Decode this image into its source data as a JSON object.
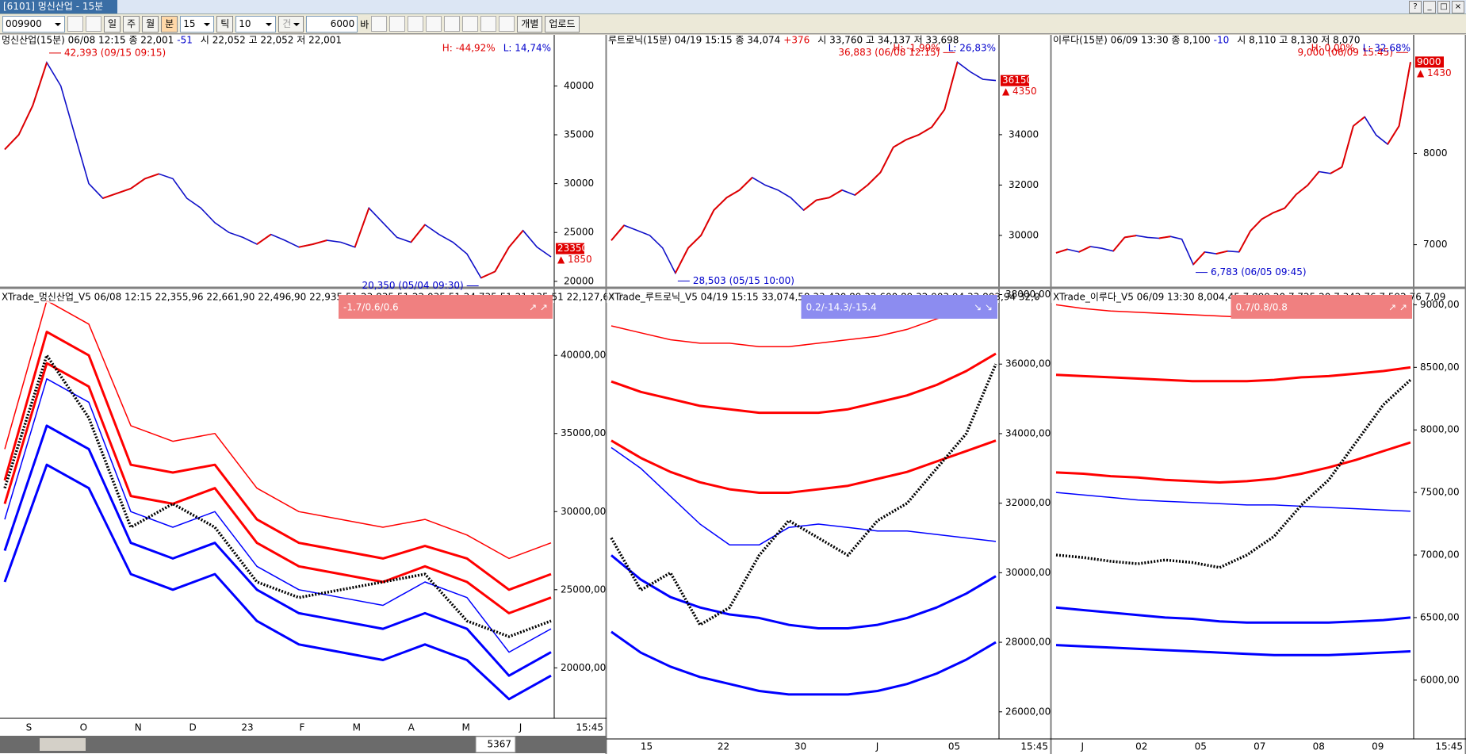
{
  "window": {
    "title": "[6101] 멍신산업 - 15분",
    "buttons": [
      "?",
      "_",
      "□",
      "×"
    ]
  },
  "toolbar": {
    "code": "009900",
    "periods": [
      "일",
      "주",
      "월",
      "분"
    ],
    "interval": "15",
    "tick_label": "틱",
    "tick": "10",
    "count_label": "건수",
    "count": "6000",
    "unit": "바",
    "actions": [
      "개별",
      "업로드"
    ]
  },
  "scroll_position": "5367",
  "panels": [
    {
      "header": "멍신산업(15분) 06/08 12:15  종 22,001",
      "change": "-51",
      "ohlc": "시 22,052 고 22,052 저 22,001",
      "high_pct": "H: -44,92%",
      "low_pct": "L: 14,74%",
      "max_note": "42,393 (09/15 09:15)",
      "min_note": "20,350 (05/04 09:30)",
      "badge": 23350,
      "badge_change": "▲ 1850",
      "ylim": [
        19500,
        44900
      ],
      "yticks": [
        20000,
        25000,
        30000,
        35000,
        40000
      ],
      "price": {
        "color": "#1010c8",
        "values": [
          33500,
          35000,
          38000,
          42393,
          40000,
          35000,
          30000,
          28500,
          29000,
          29500,
          30500,
          31000,
          30500,
          28500,
          27500,
          26000,
          25000,
          24500,
          23800,
          24800,
          24200,
          23500,
          23800,
          24200,
          24000,
          23500,
          27500,
          26000,
          24500,
          24000,
          25800,
          24800,
          24000,
          22800,
          20350,
          21000,
          23500,
          25200,
          23500,
          22500
        ]
      },
      "indicator": {
        "header": "XTrade_멍신산업_V5  06/08 12:15  22,355,96 22,661,90 22,496,90 22,935,51 23,835,51 22,035,51 24,735,51 21,135,51 22,127,64 2",
        "ratio": "-1.7/0.6/0.6",
        "arrows": "↗ ↗",
        "ratio_color": "#f08080",
        "ylim": [
          16770,
          44070
        ],
        "yticks": [
          {
            "value": 20000,
            "label": "20000,00"
          },
          {
            "value": 25000,
            "label": "25000,00"
          },
          {
            "value": 30000,
            "label": "30000,00"
          },
          {
            "value": 35000,
            "label": "35000,00"
          },
          {
            "value": 40000,
            "label": "40000,00"
          }
        ],
        "series": [
          {
            "color": "#ff0000",
            "values": [
              34000,
              43500,
              42000,
              35500,
              34500,
              35000,
              31500,
              30000,
              29500,
              29000,
              29500,
              28500,
              27000,
              28000
            ]
          },
          {
            "color": "#ff0000",
            "values": [
              32000,
              41500,
              40000,
              33000,
              32500,
              33000,
              29500,
              28000,
              27500,
              27000,
              27800,
              27000,
              25000,
              26000
            ]
          },
          {
            "color": "#ff0000",
            "values": [
              30500,
              39500,
              38000,
              31000,
              30500,
              31500,
              28000,
              26500,
              26000,
              25500,
              26500,
              25500,
              23500,
              24500
            ]
          },
          {
            "color": "#0000ff",
            "values": [
              29500,
              38500,
              37000,
              30000,
              29000,
              30000,
              26500,
              25000,
              24500,
              24000,
              25500,
              24500,
              21000,
              22500
            ]
          },
          {
            "color": "#0000ff",
            "values": [
              27500,
              35500,
              34000,
              28000,
              27000,
              28000,
              25000,
              23500,
              23000,
              22500,
              23500,
              22500,
              19500,
              21000
            ]
          },
          {
            "color": "#0000ff",
            "values": [
              25500,
              33000,
              31500,
              26000,
              25000,
              26000,
              23000,
              21500,
              21000,
              20500,
              21500,
              20500,
              18000,
              19500
            ]
          },
          {
            "color": "#000000",
            "values": [
              31500,
              40000,
              36000,
              29000,
              30500,
              29000,
              25500,
              24500,
              25000,
              25500,
              26000,
              23000,
              22000,
              23000
            ]
          }
        ]
      },
      "x_labels": [
        "S",
        "O",
        "N",
        "D",
        "23",
        "F",
        "M",
        "A",
        "M",
        "J"
      ],
      "time": "15:45"
    },
    {
      "header": "루트로닉(15분) 04/19 15:15  종 34,074",
      "change": "+376",
      "ohlc": "시 33,760 고 34,137 저 33,698",
      "high_pct": "H: -1.99%",
      "low_pct": "L: 26,83%",
      "max_note": "36,883 (06/08 12:15)",
      "min_note": "28,503 (05/15 10:00)",
      "badge": 36150,
      "badge_change": "▲ 4350",
      "ylim": [
        27980,
        37840
      ],
      "yticks": [
        30000,
        32000,
        34000
      ],
      "price": {
        "color": "#1010c8",
        "values": [
          29800,
          30400,
          30200,
          30000,
          29500,
          28503,
          29500,
          30000,
          31000,
          31500,
          31800,
          32300,
          32000,
          31800,
          31500,
          31000,
          31400,
          31500,
          31800,
          31600,
          32000,
          32500,
          33500,
          33800,
          34000,
          34300,
          35000,
          36883,
          36500,
          36200,
          36150
        ]
      },
      "indicator": {
        "header": "XTrade_루트로닉_V5  04/19 15:15  33,074,58 33,430,89 32,600,89 32,903,94 33,803,94 32,0",
        "ratio": "0.2/-14.3/-15.4",
        "arrows": "↘ ↘",
        "ratio_color": "#8c8cf0",
        "ylim": [
          25220,
          38080
        ],
        "yticks": [
          {
            "value": 26000,
            "label": "26000,00"
          },
          {
            "value": 28000,
            "label": "28000,00"
          },
          {
            "value": 30000,
            "label": "30000,00"
          },
          {
            "value": 32000,
            "label": "32000,00"
          },
          {
            "value": 34000,
            "label": "34000,00"
          },
          {
            "value": 36000,
            "label": "36000,00"
          },
          {
            "value": 38000,
            "label": "38000,00"
          }
        ],
        "series": [
          {
            "color": "#ff0000",
            "values": [
              37100,
              36900,
              36700,
              36600,
              36600,
              36500,
              36500,
              36600,
              36700,
              36800,
              37000,
              37300,
              37600,
              38000
            ]
          },
          {
            "color": "#ff0000",
            "values": [
              35500,
              35200,
              35000,
              34800,
              34700,
              34600,
              34600,
              34600,
              34700,
              34900,
              35100,
              35400,
              35800,
              36300
            ]
          },
          {
            "color": "#ff0000",
            "values": [
              33800,
              33300,
              32900,
              32600,
              32400,
              32300,
              32300,
              32400,
              32500,
              32700,
              32900,
              33200,
              33500,
              33800
            ]
          },
          {
            "color": "#0000ff",
            "values": [
              33600,
              33000,
              32200,
              31400,
              30800,
              30800,
              31300,
              31400,
              31300,
              31200,
              31200,
              31100,
              31000,
              30900
            ]
          },
          {
            "color": "#0000ff",
            "values": [
              30500,
              29800,
              29300,
              29000,
              28800,
              28700,
              28500,
              28400,
              28400,
              28500,
              28700,
              29000,
              29400,
              29900
            ]
          },
          {
            "color": "#0000ff",
            "values": [
              28300,
              27700,
              27300,
              27000,
              26800,
              26600,
              26500,
              26500,
              26500,
              26600,
              26800,
              27100,
              27500,
              28000
            ]
          },
          {
            "color": "#000000",
            "values": [
              31000,
              29500,
              30000,
              28500,
              29000,
              30500,
              31500,
              31000,
              30500,
              31500,
              32000,
              33000,
              34000,
              36000
            ]
          }
        ]
      },
      "x_labels": [
        "15",
        "22",
        "30",
        "J",
        "05"
      ],
      "time": "15:45"
    },
    {
      "header": "이루다(15분) 06/09 13:30  종 8,100",
      "change": "-10",
      "ohlc": "시 8,110 고 8,130 저 8,070",
      "high_pct": "H: 0,00%",
      "low_pct": "L: 32,68%",
      "max_note": "9,000 (06/09 15:45)",
      "min_note": "6,783 (06/05 09:45)",
      "badge": 9000,
      "badge_change": "▲ 1430",
      "ylim": [
        6545,
        9263
      ],
      "yticks": [
        7000,
        8000
      ],
      "price": {
        "color": "#1010c8",
        "values": [
          6910,
          6950,
          6920,
          6980,
          6960,
          6930,
          7080,
          7100,
          7080,
          7070,
          7090,
          7060,
          6783,
          6920,
          6900,
          6930,
          6920,
          7150,
          7280,
          7350,
          7400,
          7550,
          7650,
          7800,
          7780,
          7850,
          8300,
          8400,
          8200,
          8100,
          8300,
          9000
        ]
      },
      "indicator": {
        "header": "XTrade_이루다_V5  06/09 13:30  8,004,45 7,899,20 7,725,20 7,342,76 7,592,76 7,09",
        "ratio": "0.7/0.8/0.8",
        "arrows": "↗ ↗",
        "ratio_color": "#f08080",
        "ylim": [
          5530,
          9104
        ],
        "yticks": [
          {
            "value": 6000,
            "label": "6000,00"
          },
          {
            "value": 6500,
            "label": "6500,00"
          },
          {
            "value": 7000,
            "label": "7000,00"
          },
          {
            "value": 7500,
            "label": "7500,00"
          },
          {
            "value": 8000,
            "label": "8000,00"
          },
          {
            "value": 8500,
            "label": "8500,00"
          },
          {
            "value": 9000,
            "label": "9000,00"
          }
        ],
        "series": [
          {
            "color": "#ff0000",
            "values": [
              9000,
              8970,
              8950,
              8940,
              8930,
              8920,
              8910,
              8900,
              8900,
              8900,
              8910,
              8920,
              8930,
              8950
            ]
          },
          {
            "color": "#ff0000",
            "values": [
              8440,
              8430,
              8420,
              8410,
              8400,
              8390,
              8390,
              8390,
              8400,
              8420,
              8430,
              8450,
              8470,
              8500
            ]
          },
          {
            "color": "#ff0000",
            "values": [
              7660,
              7650,
              7630,
              7620,
              7600,
              7590,
              7580,
              7590,
              7610,
              7650,
              7700,
              7760,
              7830,
              7900
            ]
          },
          {
            "color": "#0000ff",
            "values": [
              7500,
              7480,
              7460,
              7440,
              7430,
              7420,
              7410,
              7400,
              7400,
              7390,
              7380,
              7370,
              7360,
              7350
            ]
          },
          {
            "color": "#0000ff",
            "values": [
              6580,
              6560,
              6540,
              6520,
              6500,
              6490,
              6470,
              6460,
              6460,
              6460,
              6460,
              6470,
              6480,
              6500
            ]
          },
          {
            "color": "#0000ff",
            "values": [
              6280,
              6270,
              6260,
              6250,
              6240,
              6230,
              6220,
              6210,
              6200,
              6200,
              6200,
              6210,
              6220,
              6230
            ]
          },
          {
            "color": "#000000",
            "values": [
              7000,
              6980,
              6950,
              6930,
              6960,
              6940,
              6900,
              7000,
              7150,
              7400,
              7600,
              7900,
              8200,
              8400
            ]
          }
        ]
      },
      "x_labels": [
        "J",
        "02",
        "05",
        "07",
        "08",
        "09"
      ],
      "time": "15:45"
    }
  ]
}
